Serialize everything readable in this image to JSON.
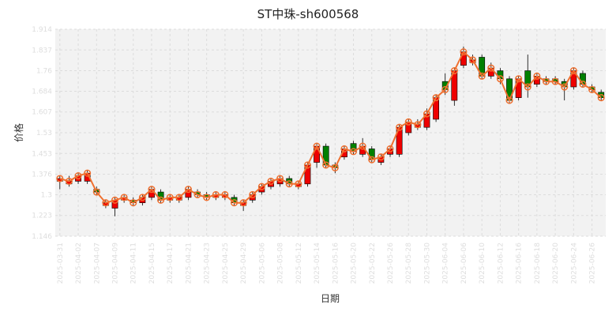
{
  "chart_data": {
    "type": "candlestick",
    "title": "ST中珠-sh600568",
    "xlabel": "日期",
    "ylabel": "价格",
    "ylim": [
      1.146,
      1.914
    ],
    "yticks": [
      "1.146",
      "1.223",
      "1.3",
      "1.376",
      "1.453",
      "1.53",
      "1.607",
      "1.684",
      "1.76",
      "1.837",
      "1.914"
    ],
    "xticks": [
      "2025-03-31",
      "2025-04-02",
      "2025-04-07",
      "2025-04-09",
      "2025-04-11",
      "2025-04-15",
      "2025-04-17",
      "2025-04-21",
      "2025-04-23",
      "2025-04-25",
      "2025-04-29",
      "2025-05-06",
      "2025-05-08",
      "2025-05-12",
      "2025-05-14",
      "2025-05-16",
      "2025-05-20",
      "2025-05-22",
      "2025-05-26",
      "2025-05-28",
      "2025-05-30",
      "2025-06-04",
      "2025-06-06",
      "2025-06-10",
      "2025-06-12",
      "2025-06-16",
      "2025-06-18",
      "2025-06-20",
      "2025-06-24",
      "2025-06-26"
    ],
    "grid": true,
    "colors": {
      "up": "#ee0000",
      "down": "#008000",
      "line": "#f07030",
      "marker_edge": "#f07030",
      "bg": "#f2f2f2"
    },
    "candles": [
      {
        "o": 1.35,
        "c": 1.36,
        "h": 1.37,
        "l": 1.32
      },
      {
        "o": 1.34,
        "c": 1.35,
        "h": 1.37,
        "l": 1.33
      },
      {
        "o": 1.35,
        "c": 1.37,
        "h": 1.38,
        "l": 1.34
      },
      {
        "o": 1.35,
        "c": 1.38,
        "h": 1.39,
        "l": 1.34
      },
      {
        "o": 1.32,
        "c": 1.31,
        "h": 1.33,
        "l": 1.3
      },
      {
        "o": 1.26,
        "c": 1.27,
        "h": 1.28,
        "l": 1.25
      },
      {
        "o": 1.25,
        "c": 1.28,
        "h": 1.29,
        "l": 1.22
      },
      {
        "o": 1.28,
        "c": 1.29,
        "h": 1.3,
        "l": 1.27
      },
      {
        "o": 1.28,
        "c": 1.27,
        "h": 1.29,
        "l": 1.26
      },
      {
        "o": 1.27,
        "c": 1.29,
        "h": 1.3,
        "l": 1.26
      },
      {
        "o": 1.29,
        "c": 1.32,
        "h": 1.33,
        "l": 1.28
      },
      {
        "o": 1.31,
        "c": 1.28,
        "h": 1.32,
        "l": 1.27
      },
      {
        "o": 1.28,
        "c": 1.29,
        "h": 1.3,
        "l": 1.27
      },
      {
        "o": 1.28,
        "c": 1.29,
        "h": 1.3,
        "l": 1.27
      },
      {
        "o": 1.29,
        "c": 1.32,
        "h": 1.33,
        "l": 1.28
      },
      {
        "o": 1.31,
        "c": 1.3,
        "h": 1.32,
        "l": 1.29
      },
      {
        "o": 1.3,
        "c": 1.29,
        "h": 1.31,
        "l": 1.28
      },
      {
        "o": 1.29,
        "c": 1.3,
        "h": 1.31,
        "l": 1.28
      },
      {
        "o": 1.29,
        "c": 1.3,
        "h": 1.31,
        "l": 1.28
      },
      {
        "o": 1.29,
        "c": 1.27,
        "h": 1.3,
        "l": 1.26
      },
      {
        "o": 1.26,
        "c": 1.27,
        "h": 1.28,
        "l": 1.24
      },
      {
        "o": 1.28,
        "c": 1.3,
        "h": 1.31,
        "l": 1.27
      },
      {
        "o": 1.31,
        "c": 1.33,
        "h": 1.34,
        "l": 1.3
      },
      {
        "o": 1.33,
        "c": 1.35,
        "h": 1.36,
        "l": 1.32
      },
      {
        "o": 1.34,
        "c": 1.36,
        "h": 1.37,
        "l": 1.33
      },
      {
        "o": 1.36,
        "c": 1.34,
        "h": 1.37,
        "l": 1.33
      },
      {
        "o": 1.33,
        "c": 1.34,
        "h": 1.35,
        "l": 1.32
      },
      {
        "o": 1.34,
        "c": 1.41,
        "h": 1.42,
        "l": 1.33
      },
      {
        "o": 1.42,
        "c": 1.48,
        "h": 1.49,
        "l": 1.4
      },
      {
        "o": 1.48,
        "c": 1.41,
        "h": 1.49,
        "l": 1.4
      },
      {
        "o": 1.41,
        "c": 1.4,
        "h": 1.42,
        "l": 1.38
      },
      {
        "o": 1.44,
        "c": 1.47,
        "h": 1.48,
        "l": 1.43
      },
      {
        "o": 1.49,
        "c": 1.46,
        "h": 1.5,
        "l": 1.45
      },
      {
        "o": 1.45,
        "c": 1.48,
        "h": 1.51,
        "l": 1.44
      },
      {
        "o": 1.47,
        "c": 1.43,
        "h": 1.48,
        "l": 1.42
      },
      {
        "o": 1.42,
        "c": 1.44,
        "h": 1.45,
        "l": 1.41
      },
      {
        "o": 1.45,
        "c": 1.47,
        "h": 1.48,
        "l": 1.44
      },
      {
        "o": 1.45,
        "c": 1.55,
        "h": 1.56,
        "l": 1.44
      },
      {
        "o": 1.53,
        "c": 1.57,
        "h": 1.58,
        "l": 1.52
      },
      {
        "o": 1.55,
        "c": 1.56,
        "h": 1.58,
        "l": 1.54
      },
      {
        "o": 1.55,
        "c": 1.6,
        "h": 1.62,
        "l": 1.54
      },
      {
        "o": 1.58,
        "c": 1.66,
        "h": 1.67,
        "l": 1.57
      },
      {
        "o": 1.72,
        "c": 1.69,
        "h": 1.75,
        "l": 1.67
      },
      {
        "o": 1.65,
        "c": 1.76,
        "h": 1.77,
        "l": 1.63
      },
      {
        "o": 1.78,
        "c": 1.83,
        "h": 1.85,
        "l": 1.77
      },
      {
        "o": 1.79,
        "c": 1.8,
        "h": 1.82,
        "l": 1.78
      },
      {
        "o": 1.81,
        "c": 1.74,
        "h": 1.82,
        "l": 1.73
      },
      {
        "o": 1.74,
        "c": 1.77,
        "h": 1.79,
        "l": 1.73
      },
      {
        "o": 1.76,
        "c": 1.73,
        "h": 1.77,
        "l": 1.71
      },
      {
        "o": 1.73,
        "c": 1.65,
        "h": 1.74,
        "l": 1.64
      },
      {
        "o": 1.66,
        "c": 1.73,
        "h": 1.74,
        "l": 1.65
      },
      {
        "o": 1.76,
        "c": 1.7,
        "h": 1.82,
        "l": 1.66
      },
      {
        "o": 1.71,
        "c": 1.74,
        "h": 1.75,
        "l": 1.7
      },
      {
        "o": 1.73,
        "c": 1.72,
        "h": 1.74,
        "l": 1.71
      },
      {
        "o": 1.73,
        "c": 1.72,
        "h": 1.74,
        "l": 1.71
      },
      {
        "o": 1.72,
        "c": 1.7,
        "h": 1.73,
        "l": 1.65
      },
      {
        "o": 1.7,
        "c": 1.76,
        "h": 1.77,
        "l": 1.69
      },
      {
        "o": 1.75,
        "c": 1.71,
        "h": 1.76,
        "l": 1.7
      },
      {
        "o": 1.7,
        "c": 1.69,
        "h": 1.71,
        "l": 1.68
      },
      {
        "o": 1.68,
        "c": 1.66,
        "h": 1.69,
        "l": 1.65
      }
    ]
  }
}
